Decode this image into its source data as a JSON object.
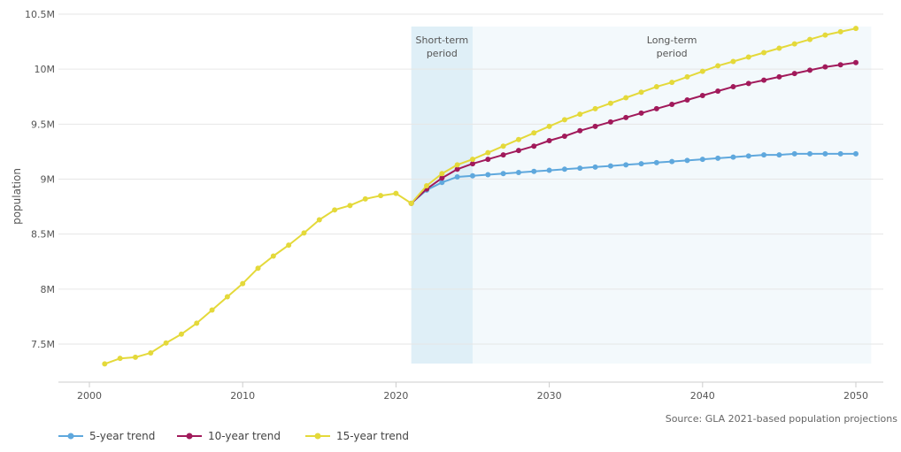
{
  "chart_data": {
    "type": "line",
    "title": "",
    "xlabel": "",
    "ylabel": "population",
    "xlim": [
      1998,
      2051
    ],
    "ylim": [
      7.3,
      10.5
    ],
    "x_ticks": [
      2000,
      2010,
      2020,
      2030,
      2040,
      2050
    ],
    "x_tick_labels": [
      "2000",
      "2010",
      "2020",
      "2030",
      "2040",
      "2050"
    ],
    "y_ticks": [
      7.5,
      8,
      8.5,
      9,
      9.5,
      10,
      10.5
    ],
    "y_tick_labels": [
      "7.5M",
      "8M",
      "8.5M",
      "9M",
      "9.5M",
      "10M",
      "10.5M"
    ],
    "y_unit": "millions",
    "grid": "horizontal",
    "legend_position": "bottom-left",
    "source_note": "Source: GLA 2021-based population projections",
    "regions": [
      {
        "label_lines": [
          "Short-term",
          "period"
        ],
        "x_start": 2021,
        "x_end": 2025,
        "color": "#dfeff7"
      },
      {
        "label_lines": [
          "Long-term",
          "period"
        ],
        "x_start": 2025,
        "x_end": 2051,
        "color": "#f3f9fc"
      }
    ],
    "historical": {
      "x": [
        2001,
        2002,
        2003,
        2004,
        2005,
        2006,
        2007,
        2008,
        2009,
        2010,
        2011,
        2012,
        2013,
        2014,
        2015,
        2016,
        2017,
        2018,
        2019,
        2020,
        2021
      ],
      "values": [
        7.32,
        7.37,
        7.38,
        7.42,
        7.51,
        7.59,
        7.69,
        7.81,
        7.93,
        8.05,
        8.19,
        8.3,
        8.4,
        8.51,
        8.63,
        8.72,
        8.76,
        8.82,
        8.85,
        8.87,
        8.78
      ]
    },
    "x": [
      2021,
      2022,
      2023,
      2024,
      2025,
      2026,
      2027,
      2028,
      2029,
      2030,
      2031,
      2032,
      2033,
      2034,
      2035,
      2036,
      2037,
      2038,
      2039,
      2040,
      2041,
      2042,
      2043,
      2044,
      2045,
      2046,
      2047,
      2048,
      2049,
      2050
    ],
    "series": [
      {
        "name": "5-year trend",
        "color": "#5fa8dd",
        "values": [
          8.78,
          8.9,
          8.97,
          9.02,
          9.03,
          9.04,
          9.05,
          9.06,
          9.07,
          9.08,
          9.09,
          9.1,
          9.11,
          9.12,
          9.13,
          9.14,
          9.15,
          9.16,
          9.17,
          9.18,
          9.19,
          9.2,
          9.21,
          9.22,
          9.22,
          9.23,
          9.23,
          9.23,
          9.23,
          9.23
        ]
      },
      {
        "name": "10-year trend",
        "color": "#a11a5b",
        "values": [
          8.78,
          8.91,
          9.01,
          9.09,
          9.14,
          9.18,
          9.22,
          9.26,
          9.3,
          9.35,
          9.39,
          9.44,
          9.48,
          9.52,
          9.56,
          9.6,
          9.64,
          9.68,
          9.72,
          9.76,
          9.8,
          9.84,
          9.87,
          9.9,
          9.93,
          9.96,
          9.99,
          10.02,
          10.04,
          10.06
        ]
      },
      {
        "name": "15-year trend",
        "color": "#e4d93a",
        "values": [
          8.78,
          8.94,
          9.05,
          9.13,
          9.18,
          9.24,
          9.3,
          9.36,
          9.42,
          9.48,
          9.54,
          9.59,
          9.64,
          9.69,
          9.74,
          9.79,
          9.84,
          9.88,
          9.93,
          9.98,
          10.03,
          10.07,
          10.11,
          10.15,
          10.19,
          10.23,
          10.27,
          10.31,
          10.34,
          10.37
        ]
      }
    ]
  }
}
